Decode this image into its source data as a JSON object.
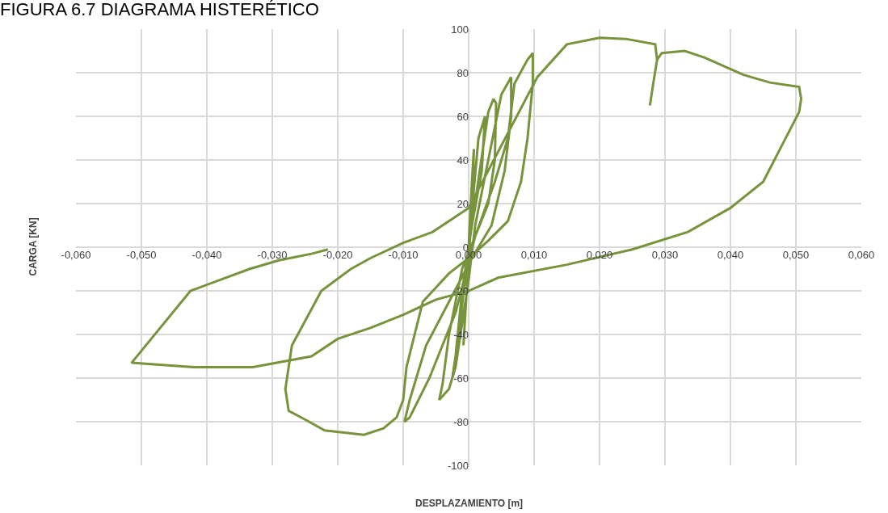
{
  "chart_data": {
    "type": "line",
    "title": "FIGURA 6.7 DIAGRAMA HISTERÉTICO",
    "xlabel": "DESPLAZAMIENTO [m]",
    "ylabel": "CARGA [KN]",
    "xlim": [
      -0.06,
      0.06
    ],
    "xticks": [
      {
        "value": -0.06,
        "label": "-0,060"
      },
      {
        "value": -0.05,
        "label": "-0,050"
      },
      {
        "value": -0.04,
        "label": "-0,040"
      },
      {
        "value": -0.03,
        "label": "-0,030"
      },
      {
        "value": -0.02,
        "label": "-0,020"
      },
      {
        "value": -0.01,
        "label": "-0,010"
      },
      {
        "value": 0,
        "label": "0,000"
      },
      {
        "value": 0.01,
        "label": "0,010"
      },
      {
        "value": 0.02,
        "label": "0,020"
      },
      {
        "value": 0.03,
        "label": "0,030"
      },
      {
        "value": 0.04,
        "label": "0,040"
      },
      {
        "value": 0.05,
        "label": "0,050"
      },
      {
        "value": 0.06,
        "label": "0,060"
      }
    ],
    "ylim": [
      -100,
      100
    ],
    "yticks": [
      -100,
      -80,
      -60,
      -40,
      -20,
      0,
      20,
      40,
      60,
      80,
      100
    ],
    "grid": true,
    "marker": "none",
    "line_style": "solid",
    "series": [
      {
        "color": "#77933c",
        "x": [
          0,
          0.0005,
          0.0008,
          0.0006,
          0,
          -0.0005,
          -0.0008,
          -0.0003,
          0,
          0.0015,
          0.0025,
          0.002,
          0.0005,
          -0.001,
          -0.002,
          -0.0025,
          -0.0015,
          0,
          0.003,
          0.0038,
          0.0042,
          0.004,
          0.003,
          0.001,
          -0.001,
          -0.003,
          -0.004,
          -0.0045,
          -0.003,
          -0.002,
          0,
          0.001,
          0.003,
          0.005,
          0.0065,
          0.0065,
          0.0055,
          0.0035,
          0.0005,
          -0.003,
          -0.0065,
          -0.009,
          -0.0098,
          -0.009,
          -0.006,
          -0.002,
          0.001,
          0.004,
          0.006,
          0.007,
          0.009,
          0.0098,
          0.0098,
          0.009,
          0.008,
          0.006,
          0.003,
          0,
          -0.003,
          -0.007,
          -0.0095,
          -0.01,
          -0.011,
          -0.013,
          -0.016,
          -0.019,
          -0.022,
          -0.025,
          -0.0275,
          -0.028,
          -0.027,
          -0.0225,
          -0.018,
          -0.015,
          -0.01,
          -0.0055,
          0,
          0.0105,
          0.015,
          0.02,
          0.024,
          0.0285,
          0.0288,
          0.0295,
          0.033,
          0.036,
          0.042,
          0.046,
          0.0505,
          0.0508,
          0.0505,
          0.045,
          0.04,
          0.0335,
          0.025,
          0.015,
          0.0045,
          0,
          -0.005,
          -0.01,
          -0.015,
          -0.02,
          -0.024,
          -0.033,
          -0.042,
          -0.0515,
          -0.0425,
          -0.0335,
          -0.029,
          -0.024,
          -0.0215,
          null,
          0.0288,
          0.0282,
          0.0277
        ],
        "values": [
          0,
          30,
          45,
          20,
          -5,
          -30,
          -45,
          -20,
          0,
          50,
          60,
          35,
          10,
          -20,
          -50,
          -60,
          -40,
          0,
          62,
          68,
          66,
          40,
          20,
          5,
          -10,
          -40,
          -63,
          -70,
          -65,
          -55,
          -15,
          10,
          40,
          70,
          78,
          60,
          35,
          10,
          -5,
          -25,
          -45,
          -70,
          -80,
          -78,
          -60,
          -30,
          5,
          30,
          50,
          75,
          86,
          89,
          75,
          50,
          30,
          12,
          3,
          -5,
          -12,
          -25,
          -55,
          -70,
          -78,
          -83,
          -86,
          -85,
          -84,
          -79,
          -75,
          -65,
          -45,
          -20,
          -10,
          -5,
          2,
          7,
          18,
          78,
          93,
          96,
          95.5,
          93,
          86,
          89,
          90,
          87,
          79,
          75.5,
          73.5,
          68,
          62,
          30,
          18,
          7,
          -1,
          -8,
          -14,
          -20,
          -24,
          -31,
          -37,
          -42,
          -50,
          -55,
          -55,
          -53,
          -20,
          -10,
          -6,
          -3,
          -1,
          null,
          86,
          75,
          65
        ]
      }
    ]
  }
}
